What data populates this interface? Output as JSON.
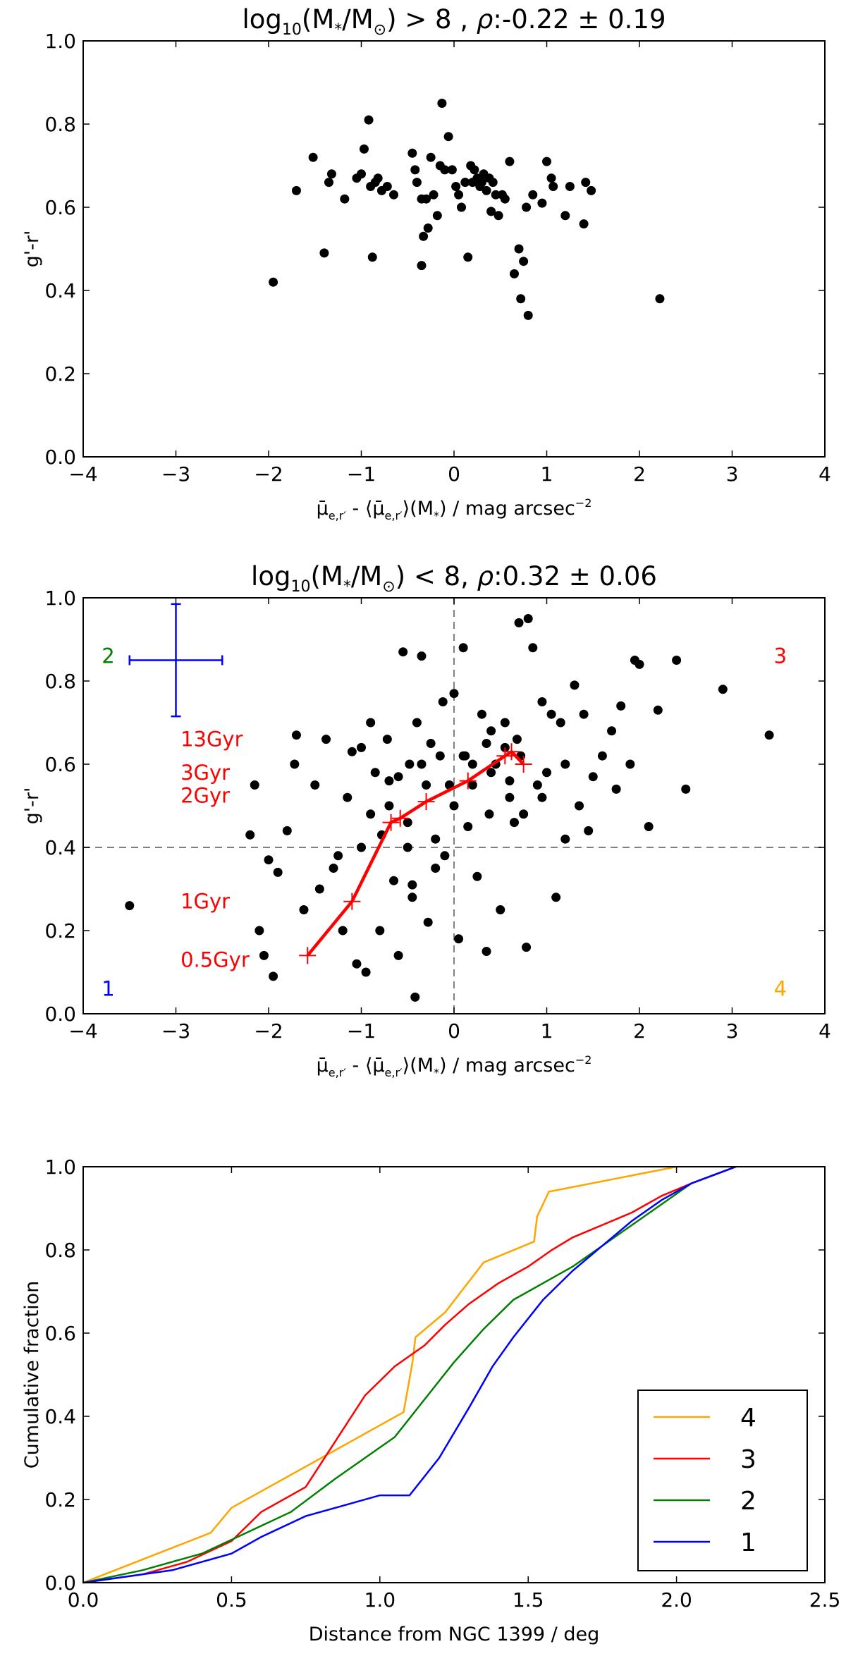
{
  "chart_data": [
    {
      "type": "scatter",
      "title": {
        "prefix": "log",
        "prefix_sub": "10",
        "body": "(M",
        "body_sub": "*",
        "mid": "/M",
        "mid_sub": "⊙",
        "rest": ") > 8 , ",
        "rho": "ρ",
        "value": ":-0.22 ± 0.19"
      },
      "xlabel": {
        "mu": "μ̄",
        "mu_sub": "e,r′",
        "dash": " - ",
        "avg": "⟨μ̄",
        "avg_sub": "e,r′",
        "avg_close": "⟩(M",
        "avg_close_sub": "*",
        "tail": ") / mag arcsec",
        "unit_sup": "−2"
      },
      "ylabel": "g'-r'",
      "xlim": [
        -4,
        4
      ],
      "ylim": [
        0,
        1
      ],
      "xticks": [
        -4,
        -3,
        -2,
        -1,
        0,
        1,
        2,
        3,
        4
      ],
      "yticks": [
        0.0,
        0.2,
        0.4,
        0.6,
        0.8,
        1.0
      ],
      "xtick_labels": [
        "−4",
        "−3",
        "−2",
        "−1",
        "0",
        "1",
        "2",
        "3",
        "4"
      ],
      "ytick_labels": [
        "0.0",
        "0.2",
        "0.4",
        "0.6",
        "0.8",
        "1.0"
      ],
      "grid": false,
      "color": "#000000",
      "x": [
        -1.95,
        -1.7,
        -1.52,
        -1.4,
        -1.35,
        -1.32,
        -1.18,
        -1.05,
        -1.0,
        -0.97,
        -0.92,
        -0.9,
        -0.88,
        -0.85,
        -0.82,
        -0.78,
        -0.72,
        -0.65,
        -0.45,
        -0.42,
        -0.4,
        -0.35,
        -0.35,
        -0.33,
        -0.3,
        -0.28,
        -0.25,
        -0.22,
        -0.18,
        -0.15,
        -0.13,
        -0.1,
        -0.06,
        -0.02,
        0.02,
        0.05,
        0.08,
        0.12,
        0.15,
        0.18,
        0.2,
        0.22,
        0.25,
        0.28,
        0.3,
        0.32,
        0.35,
        0.38,
        0.4,
        0.42,
        0.45,
        0.48,
        0.52,
        0.55,
        0.6,
        0.65,
        0.7,
        0.72,
        0.75,
        0.78,
        0.8,
        0.85,
        0.95,
        1.0,
        1.05,
        1.07,
        1.2,
        1.25,
        1.4,
        1.42,
        1.48,
        2.22
      ],
      "y": [
        0.42,
        0.64,
        0.72,
        0.49,
        0.66,
        0.68,
        0.62,
        0.67,
        0.68,
        0.74,
        0.81,
        0.65,
        0.48,
        0.66,
        0.67,
        0.64,
        0.65,
        0.63,
        0.73,
        0.69,
        0.66,
        0.62,
        0.46,
        0.53,
        0.62,
        0.55,
        0.72,
        0.63,
        0.58,
        0.7,
        0.85,
        0.69,
        0.77,
        0.69,
        0.65,
        0.63,
        0.6,
        0.66,
        0.48,
        0.7,
        0.66,
        0.69,
        0.67,
        0.65,
        0.66,
        0.68,
        0.64,
        0.67,
        0.59,
        0.66,
        0.63,
        0.58,
        0.63,
        0.62,
        0.71,
        0.44,
        0.5,
        0.38,
        0.47,
        0.6,
        0.34,
        0.63,
        0.61,
        0.71,
        0.67,
        0.65,
        0.58,
        0.65,
        0.56,
        0.66,
        0.64,
        0.38
      ]
    },
    {
      "type": "scatter",
      "title": {
        "prefix": "log",
        "prefix_sub": "10",
        "body": "(M",
        "body_sub": "*",
        "mid": "/M",
        "mid_sub": "⊙",
        "rest": ") < 8, ",
        "rho": "ρ",
        "value": ":0.32 ± 0.06"
      },
      "xlabel": {
        "mu": "μ̄",
        "mu_sub": "e,r′",
        "dash": " - ",
        "avg": "⟨μ̄",
        "avg_sub": "e,r′",
        "avg_close": "⟩(M",
        "avg_close_sub": "*",
        "tail": ") / mag arcsec",
        "unit_sup": "−2"
      },
      "ylabel": "g'-r'",
      "xlim": [
        -4,
        4
      ],
      "ylim": [
        0,
        1
      ],
      "xticks": [
        -4,
        -3,
        -2,
        -1,
        0,
        1,
        2,
        3,
        4
      ],
      "yticks": [
        0.0,
        0.2,
        0.4,
        0.6,
        0.8,
        1.0
      ],
      "xtick_labels": [
        "−4",
        "−3",
        "−2",
        "−1",
        "0",
        "1",
        "2",
        "3",
        "4"
      ],
      "ytick_labels": [
        "0.0",
        "0.2",
        "0.4",
        "0.6",
        "0.8",
        "1.0"
      ],
      "grid": false,
      "color": "#000000",
      "dashed_lines": {
        "x": 0,
        "y": 0.4,
        "color": "#808080"
      },
      "errorbar": {
        "x": -3,
        "y": 0.85,
        "xerr": 0.5,
        "yerr": 0.135,
        "color": "#0000ff"
      },
      "quadrant_labels": [
        {
          "text": "1",
          "x": -3.8,
          "y": 0.06,
          "color": "#0000ff"
        },
        {
          "text": "2",
          "x": -3.8,
          "y": 0.86,
          "color": "#008000"
        },
        {
          "text": "3",
          "x": 3.45,
          "y": 0.86,
          "color": "#ff0000"
        },
        {
          "text": "4",
          "x": 3.45,
          "y": 0.06,
          "color": "#ffa500"
        }
      ],
      "track": {
        "color": "#ff0000",
        "x": [
          -1.58,
          -1.1,
          -0.68,
          -0.58,
          -0.3,
          0.15,
          0.55,
          0.62,
          0.75
        ],
        "y": [
          0.14,
          0.27,
          0.46,
          0.47,
          0.51,
          0.56,
          0.62,
          0.63,
          0.6
        ],
        "labels": [
          {
            "text": "13Gyr",
            "x": -2.95,
            "y": 0.66
          },
          {
            "text": "3Gyr",
            "x": -2.95,
            "y": 0.58
          },
          {
            "text": "2Gyr",
            "x": -2.95,
            "y": 0.525
          },
          {
            "text": "1Gyr",
            "x": -2.95,
            "y": 0.27
          },
          {
            "text": "0.5Gyr",
            "x": -2.95,
            "y": 0.13
          }
        ]
      },
      "x": [
        -3.5,
        -2.2,
        -2.15,
        -2.1,
        -2.05,
        -2.0,
        -1.95,
        -1.9,
        -1.8,
        -1.72,
        -1.7,
        -1.62,
        -1.5,
        -1.45,
        -1.38,
        -1.3,
        -1.2,
        -1.15,
        -1.1,
        -1.05,
        -1.0,
        -0.95,
        -0.9,
        -0.85,
        -0.8,
        -0.78,
        -0.72,
        -0.7,
        -0.65,
        -0.6,
        -0.55,
        -0.5,
        -0.48,
        -0.45,
        -0.42,
        -0.4,
        -0.35,
        -0.3,
        -0.28,
        -0.25,
        -0.2,
        -0.15,
        -0.12,
        -0.1,
        -0.05,
        0.0,
        0.05,
        0.1,
        0.12,
        0.15,
        0.2,
        0.25,
        0.3,
        0.35,
        0.38,
        0.4,
        0.45,
        0.5,
        0.55,
        0.6,
        0.65,
        0.7,
        0.72,
        0.78,
        0.8,
        0.85,
        0.9,
        0.95,
        1.0,
        1.05,
        1.1,
        1.15,
        1.2,
        1.3,
        1.35,
        1.4,
        1.5,
        1.6,
        1.7,
        1.8,
        1.9,
        1.95,
        2.0,
        2.1,
        2.2,
        2.4,
        2.5,
        2.9,
        3.4,
        -0.6,
        0.1,
        0.4,
        0.68,
        0.75,
        1.2,
        -1.0,
        -0.9,
        -0.7,
        -0.5,
        -0.35,
        -0.2,
        0.0,
        0.2,
        0.35,
        0.55,
        0.95,
        1.45,
        1.75,
        -0.45,
        0.6,
        -1.25
      ],
      "y": [
        0.26,
        0.43,
        0.55,
        0.2,
        0.14,
        0.37,
        0.09,
        0.34,
        0.44,
        0.6,
        0.67,
        0.25,
        0.55,
        0.3,
        0.66,
        0.35,
        0.2,
        0.52,
        0.63,
        0.12,
        0.4,
        0.1,
        0.7,
        0.58,
        0.2,
        0.43,
        0.66,
        0.5,
        0.32,
        0.14,
        0.87,
        0.46,
        0.6,
        0.28,
        0.04,
        0.7,
        0.86,
        0.55,
        0.22,
        0.65,
        0.42,
        0.62,
        0.75,
        0.38,
        0.55,
        0.77,
        0.18,
        0.88,
        0.62,
        0.45,
        0.55,
        0.33,
        0.72,
        0.15,
        0.48,
        0.68,
        0.6,
        0.25,
        0.64,
        0.52,
        0.46,
        0.94,
        0.62,
        0.16,
        0.95,
        0.88,
        0.55,
        0.75,
        0.58,
        0.72,
        0.28,
        0.7,
        0.42,
        0.79,
        0.5,
        0.72,
        0.57,
        0.62,
        0.68,
        0.74,
        0.6,
        0.85,
        0.84,
        0.45,
        0.73,
        0.85,
        0.54,
        0.78,
        0.67,
        0.57,
        0.62,
        0.58,
        0.66,
        0.48,
        0.6,
        0.64,
        0.48,
        0.56,
        0.4,
        0.6,
        0.35,
        0.5,
        0.6,
        0.65,
        0.7,
        0.52,
        0.44,
        0.54,
        0.31,
        0.56,
        0.38
      ]
    },
    {
      "type": "line",
      "title": "",
      "xlabel": "Distance from NGC 1399 / deg",
      "ylabel": "Cumulative fraction",
      "xlim": [
        0,
        2.5
      ],
      "ylim": [
        0,
        1
      ],
      "xticks": [
        0.0,
        0.5,
        1.0,
        1.5,
        2.0,
        2.5
      ],
      "yticks": [
        0.0,
        0.2,
        0.4,
        0.6,
        0.8,
        1.0
      ],
      "xtick_labels": [
        "0.0",
        "0.5",
        "1.0",
        "1.5",
        "2.0",
        "2.5"
      ],
      "ytick_labels": [
        "0.0",
        "0.2",
        "0.4",
        "0.6",
        "0.8",
        "1.0"
      ],
      "grid": false,
      "legend": "lower-right",
      "series": [
        {
          "name": "4",
          "color": "#ffa500",
          "x": [
            0.0,
            0.43,
            0.5,
            1.08,
            1.11,
            1.12,
            1.22,
            1.35,
            1.52,
            1.53,
            1.57,
            2.0
          ],
          "y": [
            0.0,
            0.12,
            0.18,
            0.41,
            0.53,
            0.59,
            0.65,
            0.77,
            0.82,
            0.88,
            0.94,
            1.0
          ]
        },
        {
          "name": "3",
          "color": "#ff0000",
          "x": [
            0.0,
            0.2,
            0.35,
            0.5,
            0.6,
            0.75,
            0.85,
            0.95,
            1.05,
            1.15,
            1.22,
            1.3,
            1.4,
            1.5,
            1.58,
            1.65,
            1.75,
            1.85,
            1.95,
            2.05,
            2.2
          ],
          "y": [
            0.0,
            0.02,
            0.05,
            0.1,
            0.17,
            0.23,
            0.34,
            0.45,
            0.52,
            0.57,
            0.62,
            0.67,
            0.72,
            0.76,
            0.8,
            0.83,
            0.86,
            0.89,
            0.93,
            0.96,
            1.0
          ]
        },
        {
          "name": "2",
          "color": "#008000",
          "x": [
            0.0,
            0.2,
            0.4,
            0.55,
            0.7,
            0.85,
            0.95,
            1.05,
            1.15,
            1.25,
            1.35,
            1.45,
            1.55,
            1.65,
            1.75,
            1.85,
            1.95,
            2.05,
            2.2
          ],
          "y": [
            0.0,
            0.03,
            0.07,
            0.12,
            0.17,
            0.25,
            0.3,
            0.35,
            0.44,
            0.53,
            0.61,
            0.68,
            0.72,
            0.76,
            0.81,
            0.86,
            0.91,
            0.96,
            1.0
          ]
        },
        {
          "name": "1",
          "color": "#0000ff",
          "x": [
            0.0,
            0.3,
            0.5,
            0.6,
            0.75,
            0.9,
            1.0,
            1.1,
            1.2,
            1.3,
            1.38,
            1.45,
            1.55,
            1.65,
            1.75,
            1.85,
            1.95,
            2.05,
            2.2
          ],
          "y": [
            0.0,
            0.03,
            0.07,
            0.11,
            0.16,
            0.19,
            0.21,
            0.21,
            0.3,
            0.42,
            0.52,
            0.59,
            0.68,
            0.75,
            0.81,
            0.87,
            0.92,
            0.96,
            1.0
          ]
        }
      ]
    }
  ]
}
